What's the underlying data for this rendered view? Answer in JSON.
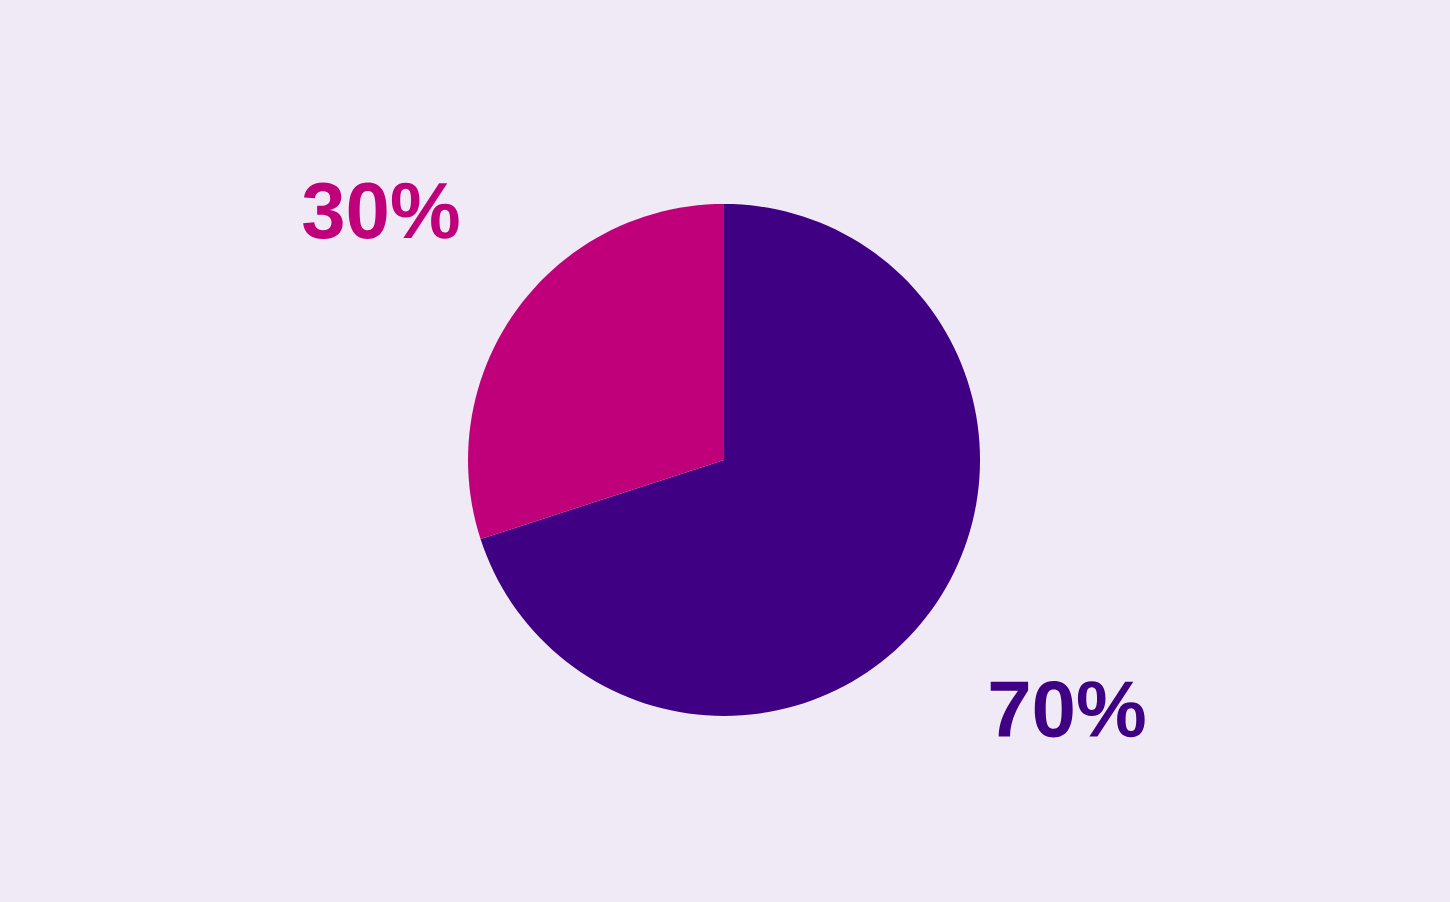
{
  "chart_data": {
    "type": "pie",
    "categories": [
      null,
      null
    ],
    "values": [
      70,
      30
    ],
    "colors": [
      "#3f0083",
      "#c0007a"
    ],
    "value_labels": [
      "70%",
      "30%"
    ]
  }
}
